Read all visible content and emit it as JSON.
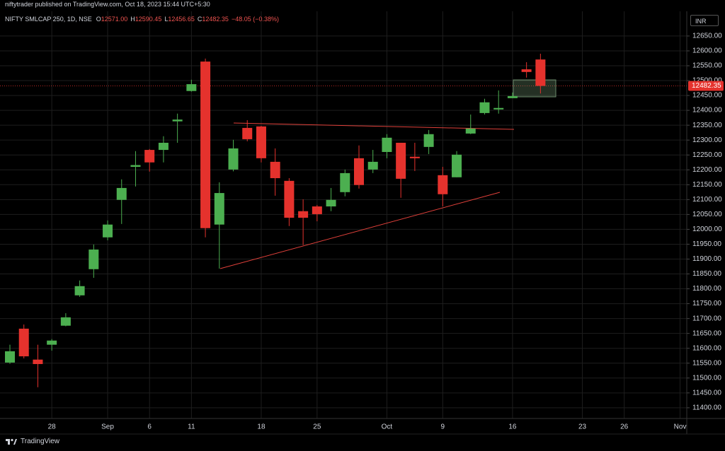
{
  "header": {
    "text": "niftytrader published on TradingView.com, Oct 18, 2023 15:44 UTC+5:30"
  },
  "chart_data": {
    "type": "candlestick",
    "title": "NIFTY SMLCAP 250, 1D, NSE",
    "ohlc_legend": [
      {
        "label": "O",
        "value": "12571.00"
      },
      {
        "label": "H",
        "value": "12590.45"
      },
      {
        "label": "L",
        "value": "12456.65"
      },
      {
        "label": "C",
        "value": "12482.35"
      }
    ],
    "change": "−48.05 (−0.38%)",
    "currency": "INR",
    "categories": [
      null,
      null,
      null,
      "28",
      null,
      null,
      null,
      "Sep",
      null,
      null,
      "6",
      null,
      null,
      "11",
      null,
      null,
      null,
      null,
      "18",
      null,
      null,
      null,
      "25",
      null,
      null,
      null,
      null,
      "Oct",
      null,
      null,
      null,
      "9",
      null,
      null,
      null,
      null,
      "16",
      null,
      null,
      null,
      null,
      "23",
      null,
      null,
      "26",
      null,
      null,
      null,
      "Nov"
    ],
    "open": [
      11552,
      11666,
      11562,
      11612,
      11676,
      11778,
      11866,
      11973,
      12099,
      12210,
      12267,
      12267,
      12363,
      12465,
      12564,
      12016,
      12201,
      12341,
      12346,
      12227,
      12163,
      12061,
      12077,
      12077,
      12125,
      12239,
      12201,
      12260,
      12291,
      12244,
      12277,
      12182,
      12175,
      12322,
      12391,
      12403,
      12441,
      12538,
      12571,
      null,
      null,
      null,
      null,
      null,
      null,
      null,
      null,
      null,
      null
    ],
    "high": [
      11612,
      11680,
      11612,
      11631,
      11718,
      11828,
      11949,
      12030,
      12168,
      12263,
      12270,
      12313,
      12389,
      12503,
      12574,
      12158,
      12301,
      12367,
      12348,
      12272,
      12172,
      12101,
      12082,
      12139,
      12201,
      12282,
      12267,
      12320,
      12291,
      12291,
      12334,
      12210,
      12263,
      12386,
      12439,
      12467,
      12460,
      12562,
      12590.45,
      null,
      null,
      null,
      null,
      null,
      null,
      null,
      null,
      null,
      null
    ],
    "low": [
      11548,
      11566,
      11469,
      11592,
      11674,
      11773,
      11837,
      11963,
      12018,
      12144,
      12194,
      12225,
      12291,
      12463,
      11973,
      11868,
      12195,
      12296,
      12225,
      12113,
      12011,
      11947,
      12027,
      12061,
      12111,
      12137,
      12189,
      12239,
      12106,
      12196,
      12253,
      12077,
      12175,
      12320,
      12386,
      12389,
      12441,
      12510,
      12456.65,
      null,
      null,
      null,
      null,
      null,
      null,
      null,
      null,
      null,
      null
    ],
    "close": [
      11590,
      11573,
      11547,
      11626,
      11704,
      11809,
      11932,
      12016,
      12139,
      12216,
      12225,
      12291,
      12369,
      12488,
      12004,
      12122,
      12272,
      12303,
      12239,
      12172,
      12039,
      12039,
      12051,
      12099,
      12189,
      12149,
      12227,
      12308,
      12170,
      12239,
      12320,
      12118,
      12251,
      12339,
      12427,
      12408,
      12448,
      12529,
      12482.35,
      null,
      null,
      null,
      null,
      null,
      null,
      null,
      null,
      null,
      null
    ],
    "up_color": "#4caf50",
    "down_color": "#e5322d",
    "ylim": [
      11364,
      12733
    ],
    "yticks": [
      {
        "value": 11400,
        "label": "11400.00"
      },
      {
        "value": 11450,
        "label": "11450.00"
      },
      {
        "value": 11500,
        "label": "11500.00"
      },
      {
        "value": 11550,
        "label": "11550.00"
      },
      {
        "value": 11600,
        "label": "11600.00"
      },
      {
        "value": 11650,
        "label": "11650.00"
      },
      {
        "value": 11700,
        "label": "11700.00"
      },
      {
        "value": 11750,
        "label": "11750.00"
      },
      {
        "value": 11800,
        "label": "11800.00"
      },
      {
        "value": 11850,
        "label": "11850.00"
      },
      {
        "value": 11900,
        "label": "11900.00"
      },
      {
        "value": 11950,
        "label": "11950.00"
      },
      {
        "value": 12000,
        "label": "12000.00"
      },
      {
        "value": 12050,
        "label": "12050.00"
      },
      {
        "value": 12100,
        "label": "12100.00"
      },
      {
        "value": 12150,
        "label": "12150.00"
      },
      {
        "value": 12200,
        "label": "12200.00"
      },
      {
        "value": 12250,
        "label": "12250.00"
      },
      {
        "value": 12300,
        "label": "12300.00"
      },
      {
        "value": 12350,
        "label": "12350.00"
      },
      {
        "value": 12400,
        "label": "12400.00"
      },
      {
        "value": 12450,
        "label": "12450.00"
      },
      {
        "value": 12500,
        "label": "12500.00"
      },
      {
        "value": 12550,
        "label": "12550.00"
      },
      {
        "value": 12600,
        "label": "12600.00"
      },
      {
        "value": 12650,
        "label": "12650.00"
      }
    ],
    "last_price": {
      "value": 12482.35,
      "label": "12482.35"
    },
    "grid": true
  },
  "footer": {
    "brand": "TradingView"
  }
}
